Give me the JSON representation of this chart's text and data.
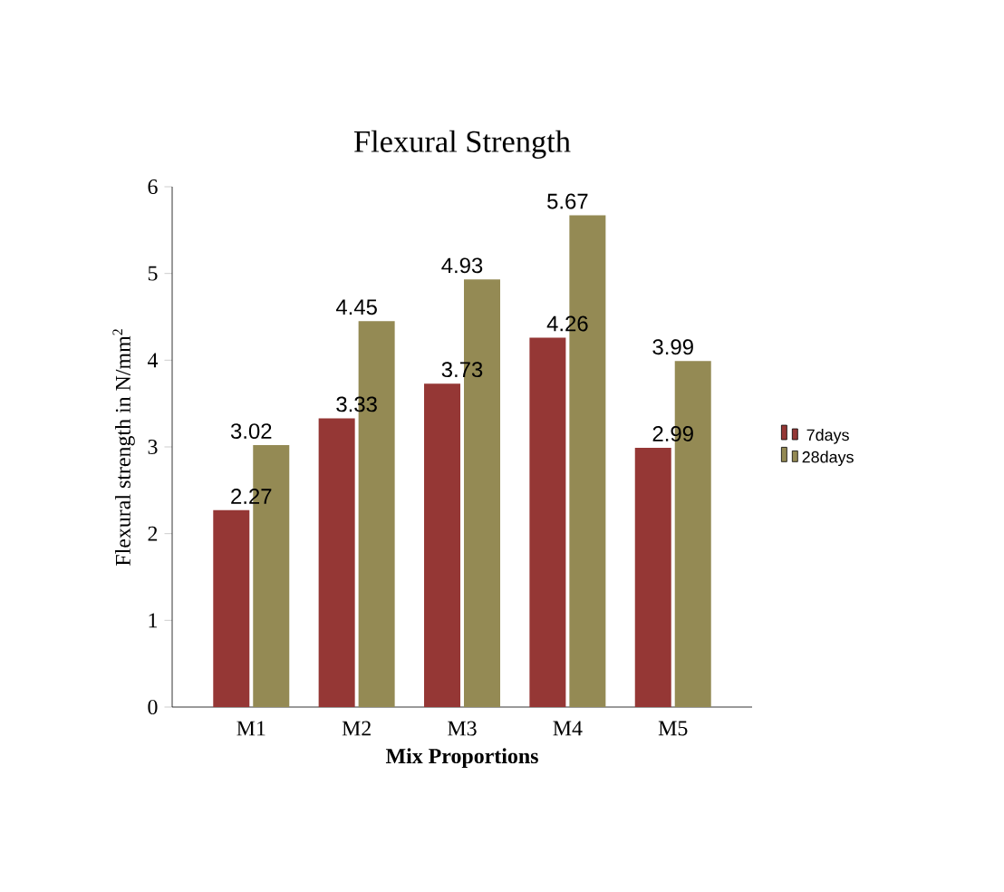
{
  "chart_data": {
    "type": "bar",
    "title": "Flexural Strength",
    "xlabel": "Mix Proportions",
    "ylabel": "Flexural strength in N/mm$^{2}$",
    "categories": [
      "M1",
      "M2",
      "M3",
      "M4",
      "M5"
    ],
    "series": [
      {
        "name": "7days",
        "color": "#953735",
        "values": [
          2.27,
          3.33,
          3.73,
          4.26,
          2.99
        ]
      },
      {
        "name": "28days",
        "color": "#948a54",
        "values": [
          3.02,
          4.45,
          4.93,
          5.67,
          3.99
        ]
      }
    ],
    "ylim": [
      0,
      6
    ],
    "yticks": [
      0,
      1,
      2,
      3,
      4,
      5,
      6
    ],
    "data_labels": true,
    "legend": "right",
    "grid": false
  }
}
